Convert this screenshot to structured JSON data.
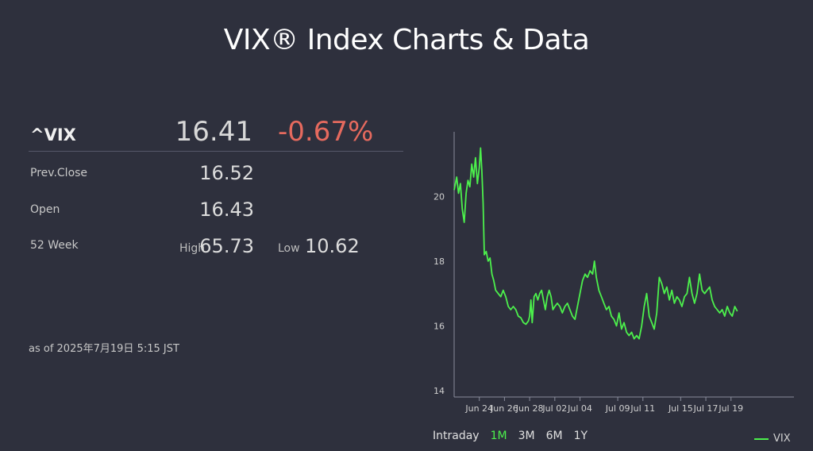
{
  "header": {
    "title": "VIX® Index Charts & Data"
  },
  "quote": {
    "symbol": "^VIX",
    "last": "16.41",
    "change": "-0.67%",
    "prev_close_label": "Prev.Close",
    "prev_close": "16.52",
    "open_label": "Open",
    "open": "16.43",
    "week52_label": "52 Week",
    "high_label": "High",
    "high": "65.73",
    "low_label": "Low",
    "low": "10.62",
    "as_of": "as of 2025年7月19日 5:15 JST"
  },
  "colors": {
    "background": "#2e303d",
    "series": "#4cf04c",
    "negative": "#e66a5e",
    "axis": "#8a8d9c"
  },
  "ranges": [
    {
      "label": "Intraday",
      "active": false
    },
    {
      "label": "1M",
      "active": true
    },
    {
      "label": "3M",
      "active": false
    },
    {
      "label": "6M",
      "active": false
    },
    {
      "label": "1Y",
      "active": false
    }
  ],
  "chart_data": {
    "type": "line",
    "ylim": [
      13.8,
      22.0
    ],
    "y_ticks": [
      14,
      16,
      18,
      20
    ],
    "x_range": [
      0,
      27
    ],
    "x_ticks": [
      {
        "x": 2,
        "label": "Jun 24"
      },
      {
        "x": 4,
        "label": "Jun 26"
      },
      {
        "x": 6,
        "label": "Jun 28"
      },
      {
        "x": 8,
        "label": "Jul 02"
      },
      {
        "x": 10,
        "label": "Jul 04"
      },
      {
        "x": 13,
        "label": "Jul 09"
      },
      {
        "x": 15,
        "label": "Jul 11"
      },
      {
        "x": 18,
        "label": "Jul 15"
      },
      {
        "x": 20,
        "label": "Jul 17"
      },
      {
        "x": 22,
        "label": "Jul 19"
      }
    ],
    "series": [
      {
        "name": "VIX",
        "points": [
          [
            0.0,
            20.2
          ],
          [
            0.2,
            20.6
          ],
          [
            0.35,
            20.1
          ],
          [
            0.5,
            20.4
          ],
          [
            0.65,
            19.6
          ],
          [
            0.8,
            19.2
          ],
          [
            0.95,
            20.1
          ],
          [
            1.1,
            20.5
          ],
          [
            1.25,
            20.3
          ],
          [
            1.4,
            21.0
          ],
          [
            1.55,
            20.6
          ],
          [
            1.7,
            21.2
          ],
          [
            1.85,
            20.4
          ],
          [
            2.0,
            20.9
          ],
          [
            2.1,
            21.5
          ],
          [
            2.2,
            20.8
          ],
          [
            2.3,
            19.8
          ],
          [
            2.4,
            18.2
          ],
          [
            2.55,
            18.3
          ],
          [
            2.7,
            18.0
          ],
          [
            2.85,
            18.1
          ],
          [
            3.0,
            17.6
          ],
          [
            3.15,
            17.4
          ],
          [
            3.3,
            17.1
          ],
          [
            3.5,
            17.0
          ],
          [
            3.7,
            16.9
          ],
          [
            3.9,
            17.1
          ],
          [
            4.1,
            16.9
          ],
          [
            4.3,
            16.6
          ],
          [
            4.5,
            16.5
          ],
          [
            4.7,
            16.6
          ],
          [
            4.9,
            16.5
          ],
          [
            5.1,
            16.3
          ],
          [
            5.3,
            16.25
          ],
          [
            5.5,
            16.1
          ],
          [
            5.7,
            16.05
          ],
          [
            5.9,
            16.15
          ],
          [
            6.0,
            16.3
          ],
          [
            6.1,
            16.8
          ],
          [
            6.2,
            16.1
          ],
          [
            6.35,
            16.9
          ],
          [
            6.5,
            17.0
          ],
          [
            6.65,
            16.8
          ],
          [
            6.8,
            17.0
          ],
          [
            6.95,
            17.1
          ],
          [
            7.1,
            16.8
          ],
          [
            7.25,
            16.5
          ],
          [
            7.4,
            16.9
          ],
          [
            7.55,
            17.1
          ],
          [
            7.7,
            16.9
          ],
          [
            7.85,
            16.5
          ],
          [
            8.0,
            16.6
          ],
          [
            8.2,
            16.7
          ],
          [
            8.4,
            16.6
          ],
          [
            8.6,
            16.4
          ],
          [
            8.8,
            16.6
          ],
          [
            9.0,
            16.7
          ],
          [
            9.2,
            16.5
          ],
          [
            9.4,
            16.3
          ],
          [
            9.6,
            16.2
          ],
          [
            9.8,
            16.6
          ],
          [
            10.0,
            17.0
          ],
          [
            10.2,
            17.4
          ],
          [
            10.4,
            17.6
          ],
          [
            10.6,
            17.5
          ],
          [
            10.8,
            17.7
          ],
          [
            11.0,
            17.6
          ],
          [
            11.15,
            18.0
          ],
          [
            11.3,
            17.5
          ],
          [
            11.5,
            17.1
          ],
          [
            11.7,
            16.9
          ],
          [
            11.9,
            16.7
          ],
          [
            12.1,
            16.5
          ],
          [
            12.3,
            16.6
          ],
          [
            12.5,
            16.3
          ],
          [
            12.7,
            16.2
          ],
          [
            12.9,
            16.0
          ],
          [
            13.1,
            16.4
          ],
          [
            13.3,
            15.9
          ],
          [
            13.5,
            16.1
          ],
          [
            13.7,
            15.8
          ],
          [
            13.9,
            15.7
          ],
          [
            14.1,
            15.8
          ],
          [
            14.3,
            15.6
          ],
          [
            14.5,
            15.7
          ],
          [
            14.7,
            15.6
          ],
          [
            14.9,
            16.0
          ],
          [
            15.1,
            16.6
          ],
          [
            15.3,
            17.0
          ],
          [
            15.5,
            16.3
          ],
          [
            15.7,
            16.1
          ],
          [
            15.9,
            15.9
          ],
          [
            16.1,
            16.4
          ],
          [
            16.3,
            17.5
          ],
          [
            16.5,
            17.3
          ],
          [
            16.7,
            17.0
          ],
          [
            16.9,
            17.2
          ],
          [
            17.1,
            16.8
          ],
          [
            17.3,
            17.1
          ],
          [
            17.5,
            16.7
          ],
          [
            17.7,
            16.9
          ],
          [
            17.9,
            16.8
          ],
          [
            18.1,
            16.6
          ],
          [
            18.3,
            16.9
          ],
          [
            18.5,
            17.0
          ],
          [
            18.7,
            17.5
          ],
          [
            18.9,
            17.0
          ],
          [
            19.1,
            16.7
          ],
          [
            19.3,
            17.0
          ],
          [
            19.5,
            17.6
          ],
          [
            19.7,
            17.1
          ],
          [
            19.9,
            17.0
          ],
          [
            20.1,
            17.1
          ],
          [
            20.3,
            17.2
          ],
          [
            20.5,
            16.8
          ],
          [
            20.7,
            16.6
          ],
          [
            20.9,
            16.5
          ],
          [
            21.1,
            16.4
          ],
          [
            21.3,
            16.5
          ],
          [
            21.5,
            16.3
          ],
          [
            21.7,
            16.6
          ],
          [
            21.9,
            16.4
          ],
          [
            22.1,
            16.3
          ],
          [
            22.3,
            16.6
          ],
          [
            22.5,
            16.45
          ]
        ]
      }
    ]
  }
}
